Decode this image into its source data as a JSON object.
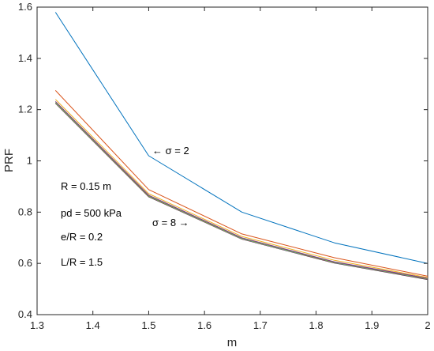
{
  "chart_data": {
    "type": "line",
    "xlabel": "m",
    "ylabel": "PRF",
    "xlim": [
      1.3,
      2.0
    ],
    "ylim": [
      0.4,
      1.6
    ],
    "xticks": [
      "1.3",
      "1.4",
      "1.5",
      "1.6",
      "1.7",
      "1.8",
      "1.9",
      "2"
    ],
    "yticks": [
      "0.4",
      "0.6",
      "0.8",
      "1",
      "1.2",
      "1.4",
      "1.6"
    ],
    "grid": false,
    "x": [
      1.333,
      1.5,
      1.667,
      1.833,
      2.0
    ],
    "series": [
      {
        "color": "#0072BD",
        "values": [
          1.58,
          1.02,
          0.8,
          0.68,
          0.6
        ]
      },
      {
        "color": "#D95319",
        "values": [
          1.275,
          0.888,
          0.715,
          0.622,
          0.55
        ]
      },
      {
        "color": "#EDB120",
        "values": [
          1.24,
          0.872,
          0.705,
          0.612,
          0.545
        ]
      },
      {
        "color": "#7E2F8E",
        "values": [
          1.232,
          0.866,
          0.7,
          0.606,
          0.542
        ]
      },
      {
        "color": "#77AC30",
        "values": [
          1.228,
          0.863,
          0.697,
          0.604,
          0.54
        ]
      },
      {
        "color": "#4DBEEE",
        "values": [
          1.226,
          0.862,
          0.696,
          0.603,
          0.539
        ]
      },
      {
        "color": "#A2142F",
        "values": [
          1.225,
          0.861,
          0.695,
          0.602,
          0.538
        ]
      },
      {
        "color": "#333333",
        "values": [
          1.225,
          0.86,
          0.695,
          0.601,
          0.537
        ]
      }
    ],
    "annotations": {
      "sigma2": "← σ = 2",
      "sigma8": "σ = 8 →",
      "R": "R = 0.15 m",
      "pd": "pd = 500 kPa",
      "eR": "e/R = 0.2",
      "LR": "L/R = 1.5"
    }
  }
}
